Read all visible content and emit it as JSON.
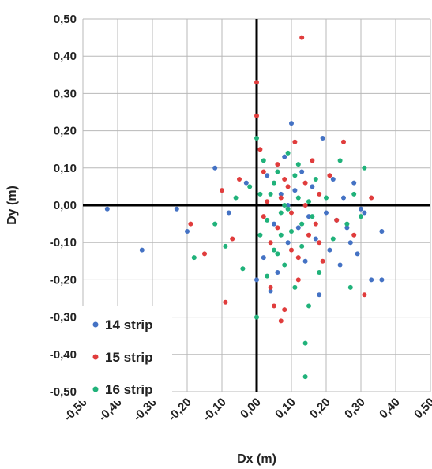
{
  "chart_data": {
    "type": "scatter",
    "title": "",
    "xlabel": "Dx (m)",
    "ylabel": "Dy (m)",
    "xlim": [
      -0.5,
      0.5
    ],
    "ylim": [
      -0.5,
      0.5
    ],
    "grid": true,
    "legend_position": "bottom-left",
    "x_ticks": [
      "-0,50",
      "-0,40",
      "-0,30",
      "-0,20",
      "-0,10",
      "0,00",
      "0,10",
      "0,20",
      "0,30",
      "0,40",
      "0,50"
    ],
    "y_ticks": [
      "0,50",
      "0,40",
      "0,30",
      "0,20",
      "0,10",
      "0,00",
      "-0,10",
      "-0,20",
      "-0,30",
      "-0,40",
      "-0,50"
    ],
    "series": [
      {
        "name": "14 strip",
        "color": "#4472C4",
        "points": [
          [
            -0.43,
            -0.01
          ],
          [
            -0.33,
            -0.12
          ],
          [
            -0.23,
            -0.01
          ],
          [
            -0.2,
            -0.07
          ],
          [
            -0.12,
            0.1
          ],
          [
            -0.08,
            -0.02
          ],
          [
            -0.03,
            0.06
          ],
          [
            0.0,
            -0.2
          ],
          [
            0.02,
            -0.14
          ],
          [
            0.03,
            0.08
          ],
          [
            0.05,
            -0.05
          ],
          [
            0.07,
            0.03
          ],
          [
            0.08,
            0.13
          ],
          [
            0.09,
            -0.1
          ],
          [
            0.1,
            0.22
          ],
          [
            0.11,
            0.04
          ],
          [
            0.12,
            -0.06
          ],
          [
            0.13,
            0.09
          ],
          [
            0.14,
            -0.15
          ],
          [
            0.15,
            -0.03
          ],
          [
            0.16,
            0.05
          ],
          [
            0.17,
            -0.09
          ],
          [
            0.18,
            -0.24
          ],
          [
            0.19,
            0.18
          ],
          [
            0.2,
            -0.02
          ],
          [
            0.21,
            -0.12
          ],
          [
            0.22,
            0.07
          ],
          [
            0.23,
            -0.04
          ],
          [
            0.24,
            -0.16
          ],
          [
            0.25,
            0.02
          ],
          [
            0.26,
            -0.06
          ],
          [
            0.27,
            -0.1
          ],
          [
            0.28,
            0.06
          ],
          [
            0.29,
            -0.13
          ],
          [
            0.3,
            -0.01
          ],
          [
            0.31,
            -0.02
          ],
          [
            0.33,
            -0.2
          ],
          [
            0.36,
            -0.07
          ],
          [
            0.36,
            -0.2
          ],
          [
            0.04,
            -0.23
          ],
          [
            0.06,
            -0.18
          ],
          [
            0.09,
            0.0
          ]
        ]
      },
      {
        "name": "15 strip",
        "color": "#E03C3C",
        "points": [
          [
            -0.19,
            -0.05
          ],
          [
            -0.15,
            -0.13
          ],
          [
            -0.1,
            0.04
          ],
          [
            -0.09,
            -0.26
          ],
          [
            -0.07,
            -0.09
          ],
          [
            -0.05,
            0.07
          ],
          [
            0.0,
            0.33
          ],
          [
            0.0,
            0.24
          ],
          [
            0.01,
            0.15
          ],
          [
            0.02,
            -0.03
          ],
          [
            0.03,
            0.01
          ],
          [
            0.04,
            -0.22
          ],
          [
            0.05,
            -0.27
          ],
          [
            0.06,
            0.11
          ],
          [
            0.07,
            -0.31
          ],
          [
            0.08,
            -0.28
          ],
          [
            0.09,
            0.05
          ],
          [
            0.1,
            -0.12
          ],
          [
            0.11,
            0.17
          ],
          [
            0.12,
            -0.2
          ],
          [
            0.13,
            0.45
          ],
          [
            0.14,
            0.0
          ],
          [
            0.15,
            -0.08
          ],
          [
            0.16,
            0.12
          ],
          [
            0.17,
            -0.05
          ],
          [
            0.18,
            0.03
          ],
          [
            0.19,
            -0.15
          ],
          [
            0.21,
            0.08
          ],
          [
            0.23,
            -0.04
          ],
          [
            0.25,
            0.17
          ],
          [
            0.28,
            -0.08
          ],
          [
            0.31,
            -0.24
          ],
          [
            0.33,
            0.02
          ],
          [
            0.06,
            -0.06
          ],
          [
            0.08,
            0.07
          ],
          [
            0.1,
            -0.02
          ],
          [
            0.02,
            0.09
          ],
          [
            0.04,
            -0.1
          ],
          [
            0.07,
            0.02
          ],
          [
            0.12,
            -0.14
          ],
          [
            0.14,
            0.06
          ],
          [
            0.18,
            -0.1
          ]
        ]
      },
      {
        "name": "16 strip",
        "color": "#20B27A",
        "points": [
          [
            -0.18,
            -0.14
          ],
          [
            -0.12,
            -0.05
          ],
          [
            -0.09,
            -0.11
          ],
          [
            -0.06,
            0.02
          ],
          [
            -0.04,
            -0.17
          ],
          [
            -0.02,
            0.05
          ],
          [
            0.0,
            0.18
          ],
          [
            0.0,
            -0.3
          ],
          [
            0.01,
            -0.08
          ],
          [
            0.02,
            0.12
          ],
          [
            0.03,
            -0.19
          ],
          [
            0.04,
            0.03
          ],
          [
            0.05,
            -0.12
          ],
          [
            0.06,
            0.09
          ],
          [
            0.07,
            -0.02
          ],
          [
            0.08,
            -0.16
          ],
          [
            0.09,
            0.14
          ],
          [
            0.1,
            -0.07
          ],
          [
            0.11,
            -0.22
          ],
          [
            0.12,
            0.02
          ],
          [
            0.13,
            -0.11
          ],
          [
            0.14,
            -0.46
          ],
          [
            0.14,
            -0.37
          ],
          [
            0.15,
            -0.27
          ],
          [
            0.16,
            -0.03
          ],
          [
            0.17,
            0.07
          ],
          [
            0.18,
            -0.18
          ],
          [
            0.2,
            0.02
          ],
          [
            0.22,
            -0.09
          ],
          [
            0.24,
            0.12
          ],
          [
            0.26,
            -0.05
          ],
          [
            0.27,
            -0.22
          ],
          [
            0.28,
            0.03
          ],
          [
            0.3,
            -0.03
          ],
          [
            0.31,
            0.1
          ],
          [
            0.01,
            0.03
          ],
          [
            0.03,
            -0.04
          ],
          [
            0.05,
            0.06
          ],
          [
            0.07,
            -0.08
          ],
          [
            0.09,
            -0.01
          ],
          [
            0.11,
            0.08
          ],
          [
            0.13,
            -0.05
          ],
          [
            0.15,
            0.01
          ],
          [
            0.06,
            -0.13
          ],
          [
            0.08,
            0.0
          ],
          [
            0.12,
            0.11
          ]
        ]
      }
    ]
  }
}
